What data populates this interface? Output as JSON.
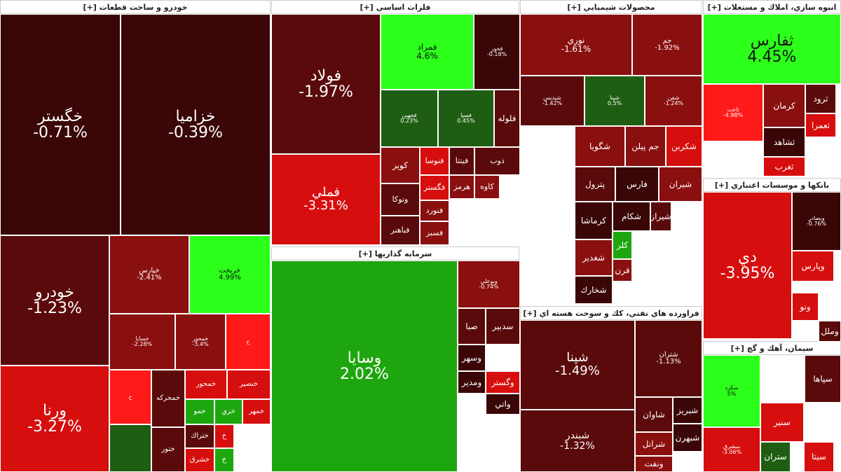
{
  "colors": {
    "deep_red": "#3a0606",
    "dark_red": "#5a0a0a",
    "red": "#8a0f0f",
    "bright_red": "#d60e0e",
    "vivid_red": "#ff1a1a",
    "dark_green": "#1f5e12",
    "green": "#1ea60f",
    "bright_green": "#2bff1a"
  },
  "sectors": [
    {
      "id": "auto",
      "title": "خودرو و ساخت قطعات [+]"
    },
    {
      "id": "metals",
      "title": "فلزات اساسي [+]"
    },
    {
      "id": "chem",
      "title": "محصولات شيميايي [+]"
    },
    {
      "id": "realestate",
      "title": "انبوه سازي، املاك و مستغلات [+]"
    },
    {
      "id": "invest",
      "title": "سرمايه گذاريها [+]"
    },
    {
      "id": "banks",
      "title": "بانكها و موسسات اعتباري [+]"
    },
    {
      "id": "oil",
      "title": "فراورده هاي نفتي، كك و سوخت هسته اي [+]"
    },
    {
      "id": "cement",
      "title": "سيمان، آهك و گچ [+]"
    }
  ],
  "tiles": [
    {
      "name": "خگستر",
      "change": "-0.71%",
      "color": "deep_red"
    },
    {
      "name": "خزاميا",
      "change": "-0.39%",
      "color": "deep_red"
    },
    {
      "name": "خودرو",
      "change": "-1.23%",
      "color": "dark_red"
    },
    {
      "name": "خپارس",
      "change": "-2.41%",
      "color": "red"
    },
    {
      "name": "خريخت",
      "change": "4.99%",
      "color": "bright_green"
    },
    {
      "name": "خساپا",
      "change": "-2.28%",
      "color": "red"
    },
    {
      "name": "خمحور",
      "change": "-3.4%",
      "color": "red"
    },
    {
      "name": "خ",
      "change": "",
      "color": "vivid_red"
    },
    {
      "name": "ورنا",
      "change": "-3.27%",
      "color": "bright_red"
    },
    {
      "name": "خ",
      "change": "",
      "color": "vivid_red"
    },
    {
      "name": "خمحركه",
      "change": "",
      "color": "dark_red"
    },
    {
      "name": "خمحور",
      "change": "",
      "color": "bright_red"
    },
    {
      "name": "خنصير",
      "change": "",
      "color": "bright_red"
    },
    {
      "name": "خمو",
      "change": "",
      "color": "green"
    },
    {
      "name": "خري",
      "change": "",
      "color": "green"
    },
    {
      "name": "خمهر",
      "change": "",
      "color": "bright_red"
    },
    {
      "name": "ختراك",
      "change": "",
      "color": "dark_red"
    },
    {
      "name": "خ",
      "change": "",
      "color": "bright_red"
    },
    {
      "name": "ختور",
      "change": "",
      "color": "dark_red"
    },
    {
      "name": "خشرق",
      "change": "",
      "color": "bright_red"
    },
    {
      "name": "خ",
      "change": "",
      "color": "green"
    },
    {
      "name": "",
      "change": "",
      "color": "dark_green"
    },
    {
      "name": "فولاد",
      "change": "-1.97%",
      "color": "dark_red"
    },
    {
      "name": "فملي",
      "change": "-3.31%",
      "color": "bright_red"
    },
    {
      "name": "فمراد",
      "change": "4.6%",
      "color": "bright_green"
    },
    {
      "name": "فخوز",
      "change": "-0.18%",
      "color": "deep_red"
    },
    {
      "name": "فلوله",
      "change": "",
      "color": "dark_red"
    },
    {
      "name": "فجهبن",
      "change": "0.23%",
      "color": "dark_green"
    },
    {
      "name": "فسپا",
      "change": "0.45%",
      "color": "dark_green"
    },
    {
      "name": "كوير",
      "change": "",
      "color": "red"
    },
    {
      "name": "فنوسا",
      "change": "",
      "color": "bright_red"
    },
    {
      "name": "فيتتا",
      "change": "",
      "color": "dark_red"
    },
    {
      "name": "ذوب",
      "change": "",
      "color": "dark_red"
    },
    {
      "name": "فگستر",
      "change": "",
      "color": "bright_red"
    },
    {
      "name": "هرمز",
      "change": "",
      "color": "red"
    },
    {
      "name": "كاوه",
      "change": "",
      "color": "red"
    },
    {
      "name": "وتوكا",
      "change": "",
      "color": "dark_red"
    },
    {
      "name": "فنورد",
      "change": "",
      "color": "red"
    },
    {
      "name": "فباهنر",
      "change": "",
      "color": "dark_red"
    },
    {
      "name": "فسبز",
      "change": "",
      "color": "red"
    },
    {
      "name": "نوري",
      "change": "-1.61%",
      "color": "red"
    },
    {
      "name": "جم",
      "change": "-1.92%",
      "color": "red"
    },
    {
      "name": "شپديس",
      "change": "-1.42%",
      "color": "dark_red"
    },
    {
      "name": "شپنا",
      "change": "0.5%",
      "color": "dark_green"
    },
    {
      "name": "شفن",
      "change": "-1.24%",
      "color": "red"
    },
    {
      "name": "شگويا",
      "change": "",
      "color": "red"
    },
    {
      "name": "جم پيلن",
      "change": "",
      "color": "red"
    },
    {
      "name": "شكربن",
      "change": "",
      "color": "bright_red"
    },
    {
      "name": "پترول",
      "change": "",
      "color": "dark_red"
    },
    {
      "name": "فارس",
      "change": "",
      "color": "deep_red"
    },
    {
      "name": "شيران",
      "change": "",
      "color": "red"
    },
    {
      "name": "كرماشا",
      "change": "",
      "color": "deep_red"
    },
    {
      "name": "شكام",
      "change": "",
      "color": "deep_red"
    },
    {
      "name": "شيراز",
      "change": "",
      "color": "dark_red"
    },
    {
      "name": "شغدير",
      "change": "",
      "color": "red"
    },
    {
      "name": "شخارك",
      "change": "",
      "color": "deep_red"
    },
    {
      "name": "كلر",
      "change": "",
      "color": "green"
    },
    {
      "name": "قرن",
      "change": "",
      "color": "red"
    },
    {
      "name": "ثفارس",
      "change": "4.45%",
      "color": "bright_green"
    },
    {
      "name": "ثاخت",
      "change": "-4.98%",
      "color": "vivid_red"
    },
    {
      "name": "كرمان",
      "change": "",
      "color": "red"
    },
    {
      "name": "ثرود",
      "change": "",
      "color": "dark_red"
    },
    {
      "name": "ثعمرا",
      "change": "",
      "color": "bright_red"
    },
    {
      "name": "ثشاهد",
      "change": "",
      "color": "deep_red"
    },
    {
      "name": "ثغرب",
      "change": "",
      "color": "bright_red"
    },
    {
      "name": "وسايا",
      "change": "2.02%",
      "color": "green"
    },
    {
      "name": "وبوعلي",
      "change": "-0.74%",
      "color": "red"
    },
    {
      "name": "صبا",
      "change": "",
      "color": "dark_red"
    },
    {
      "name": "سدبير",
      "change": "",
      "color": "dark_red"
    },
    {
      "name": "وسهر",
      "change": "",
      "color": "deep_red"
    },
    {
      "name": "ومدير",
      "change": "",
      "color": "deep_red"
    },
    {
      "name": "وگستر",
      "change": "",
      "color": "bright_red"
    },
    {
      "name": "واتي",
      "change": "",
      "color": "deep_red"
    },
    {
      "name": "دي",
      "change": "-3.95%",
      "color": "bright_red"
    },
    {
      "name": "وبصادر",
      "change": "-0.76%",
      "color": "deep_red"
    },
    {
      "name": "وپارس",
      "change": "",
      "color": "bright_red"
    },
    {
      "name": "ونو",
      "change": "",
      "color": "bright_red"
    },
    {
      "name": "وملل",
      "change": "",
      "color": "dark_red"
    },
    {
      "name": "شپنا",
      "change": "-1.49%",
      "color": "dark_red"
    },
    {
      "name": "شتران",
      "change": "-1.13%",
      "color": "dark_red"
    },
    {
      "name": "شبندر",
      "change": "-1.32%",
      "color": "dark_red"
    },
    {
      "name": "شاوان",
      "change": "",
      "color": "dark_red"
    },
    {
      "name": "شبريز",
      "change": "",
      "color": "deep_red"
    },
    {
      "name": "شرانل",
      "change": "",
      "color": "red"
    },
    {
      "name": "شبهرن",
      "change": "",
      "color": "deep_red"
    },
    {
      "name": "ونفت",
      "change": "",
      "color": "red"
    },
    {
      "name": "سكرد",
      "change": "5%",
      "color": "bright_green"
    },
    {
      "name": "سپاها",
      "change": "",
      "color": "dark_red"
    },
    {
      "name": "سنير",
      "change": "",
      "color": "bright_red"
    },
    {
      "name": "سشرق",
      "change": "-3.06%",
      "color": "bright_red"
    },
    {
      "name": "ستران",
      "change": "",
      "color": "dark_green"
    },
    {
      "name": "سيتا",
      "change": "",
      "color": "bright_red"
    }
  ]
}
